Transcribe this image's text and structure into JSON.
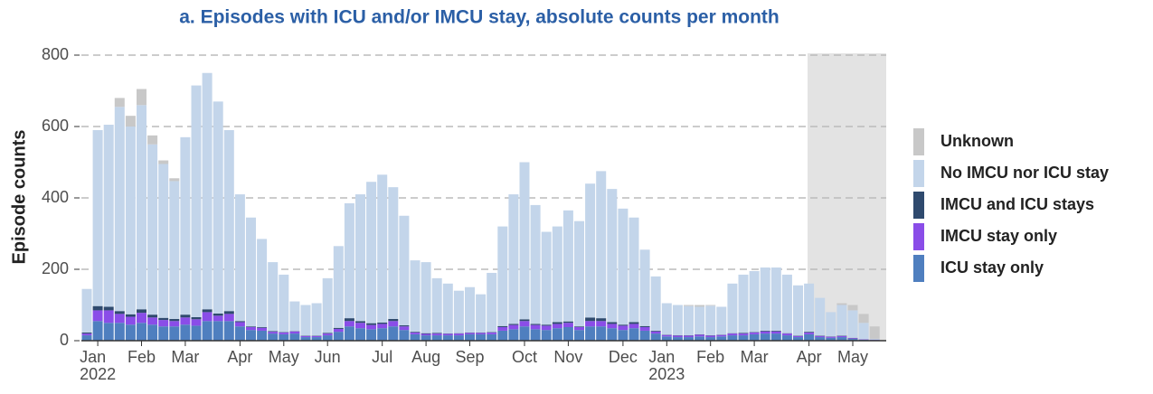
{
  "chart_data": {
    "type": "stacked_bar",
    "title": "a. Episodes with ICU and/or IMCU stay, absolute counts per month",
    "y_label": "Episode counts",
    "categories": [
      null,
      "Jan\n2022",
      null,
      null,
      null,
      "Feb",
      null,
      null,
      null,
      "Mar",
      null,
      null,
      null,
      null,
      "Apr",
      null,
      null,
      null,
      "May",
      null,
      null,
      null,
      "Jun",
      null,
      null,
      null,
      null,
      "Jul",
      null,
      null,
      null,
      "Aug",
      null,
      null,
      null,
      "Sep",
      null,
      null,
      null,
      null,
      "Oct",
      null,
      null,
      null,
      "Nov",
      null,
      null,
      null,
      null,
      "Dec",
      null,
      null,
      null,
      "Jan\n2023",
      null,
      null,
      null,
      "Feb",
      null,
      null,
      null,
      "Mar",
      null,
      null,
      null,
      null,
      "Apr",
      null,
      null,
      null,
      "May",
      null,
      null
    ],
    "series": [
      {
        "name": "ICU stay only",
        "color": "#4f7fbf",
        "values": [
          15,
          55,
          50,
          50,
          45,
          50,
          45,
          40,
          40,
          45,
          42,
          55,
          55,
          55,
          40,
          30,
          28,
          20,
          18,
          20,
          10,
          10,
          15,
          25,
          40,
          35,
          32,
          35,
          40,
          30,
          18,
          15,
          15,
          15,
          15,
          18,
          18,
          18,
          28,
          32,
          40,
          32,
          30,
          35,
          38,
          30,
          40,
          40,
          35,
          30,
          35,
          28,
          20,
          12,
          10,
          10,
          12,
          10,
          12,
          15,
          15,
          18,
          20,
          20,
          15,
          10,
          18,
          10,
          8,
          10,
          5,
          3,
          2
        ]
      },
      {
        "name": "IMCU stay only",
        "color": "#8a4de8",
        "values": [
          5,
          30,
          35,
          25,
          22,
          28,
          20,
          18,
          15,
          20,
          18,
          25,
          15,
          20,
          12,
          8,
          8,
          5,
          5,
          6,
          3,
          3,
          5,
          8,
          15,
          15,
          12,
          12,
          15,
          10,
          5,
          4,
          5,
          4,
          5,
          4,
          4,
          5,
          10,
          12,
          15,
          12,
          12,
          12,
          12,
          8,
          15,
          15,
          12,
          12,
          12,
          10,
          6,
          4,
          4,
          4,
          5,
          4,
          4,
          5,
          5,
          5,
          6,
          6,
          5,
          3,
          5,
          3,
          3,
          3,
          2,
          1,
          1
        ]
      },
      {
        "name": "IMCU and ICU stays",
        "color": "#2f4a6e",
        "values": [
          3,
          12,
          10,
          8,
          7,
          10,
          8,
          6,
          6,
          8,
          6,
          8,
          6,
          8,
          3,
          2,
          2,
          2,
          1,
          1,
          1,
          1,
          2,
          3,
          8,
          5,
          5,
          4,
          6,
          3,
          2,
          2,
          2,
          1,
          1,
          1,
          1,
          1,
          3,
          3,
          5,
          3,
          3,
          5,
          4,
          2,
          10,
          8,
          5,
          3,
          5,
          3,
          2,
          1,
          1,
          1,
          1,
          1,
          1,
          1,
          2,
          1,
          2,
          2,
          1,
          1,
          2,
          1,
          1,
          1,
          1,
          0,
          0
        ]
      },
      {
        "name": "No IMCU nor ICU stay",
        "color": "#c3d5ea",
        "values": [
          122,
          493,
          510,
          572,
          526,
          572,
          477,
          431,
          386,
          497,
          649,
          662,
          594,
          507,
          355,
          305,
          247,
          193,
          161,
          83,
          86,
          91,
          153,
          229,
          322,
          355,
          396,
          414,
          369,
          307,
          200,
          199,
          153,
          140,
          119,
          127,
          107,
          166,
          279,
          363,
          440,
          333,
          260,
          268,
          311,
          295,
          375,
          412,
          373,
          325,
          293,
          214,
          152,
          88,
          85,
          82,
          77,
          83,
          78,
          139,
          163,
          171,
          177,
          177,
          164,
          141,
          135,
          106,
          68,
          86,
          77,
          46,
          2
        ]
      },
      {
        "name": "Unknown",
        "color": "#c8c8c8",
        "values": [
          0,
          0,
          0,
          25,
          30,
          45,
          25,
          10,
          8,
          0,
          0,
          0,
          0,
          0,
          0,
          0,
          0,
          0,
          0,
          0,
          0,
          0,
          0,
          0,
          0,
          0,
          0,
          0,
          0,
          0,
          0,
          0,
          0,
          0,
          0,
          0,
          0,
          0,
          0,
          0,
          0,
          0,
          0,
          0,
          0,
          0,
          0,
          0,
          0,
          0,
          0,
          0,
          0,
          0,
          0,
          3,
          5,
          2,
          0,
          0,
          0,
          0,
          0,
          0,
          0,
          0,
          0,
          0,
          0,
          5,
          15,
          25,
          35
        ]
      }
    ],
    "ylim": [
      0,
      800
    ],
    "yticks": [
      0,
      200,
      400,
      600,
      800
    ],
    "grid": true,
    "legend": "right"
  }
}
